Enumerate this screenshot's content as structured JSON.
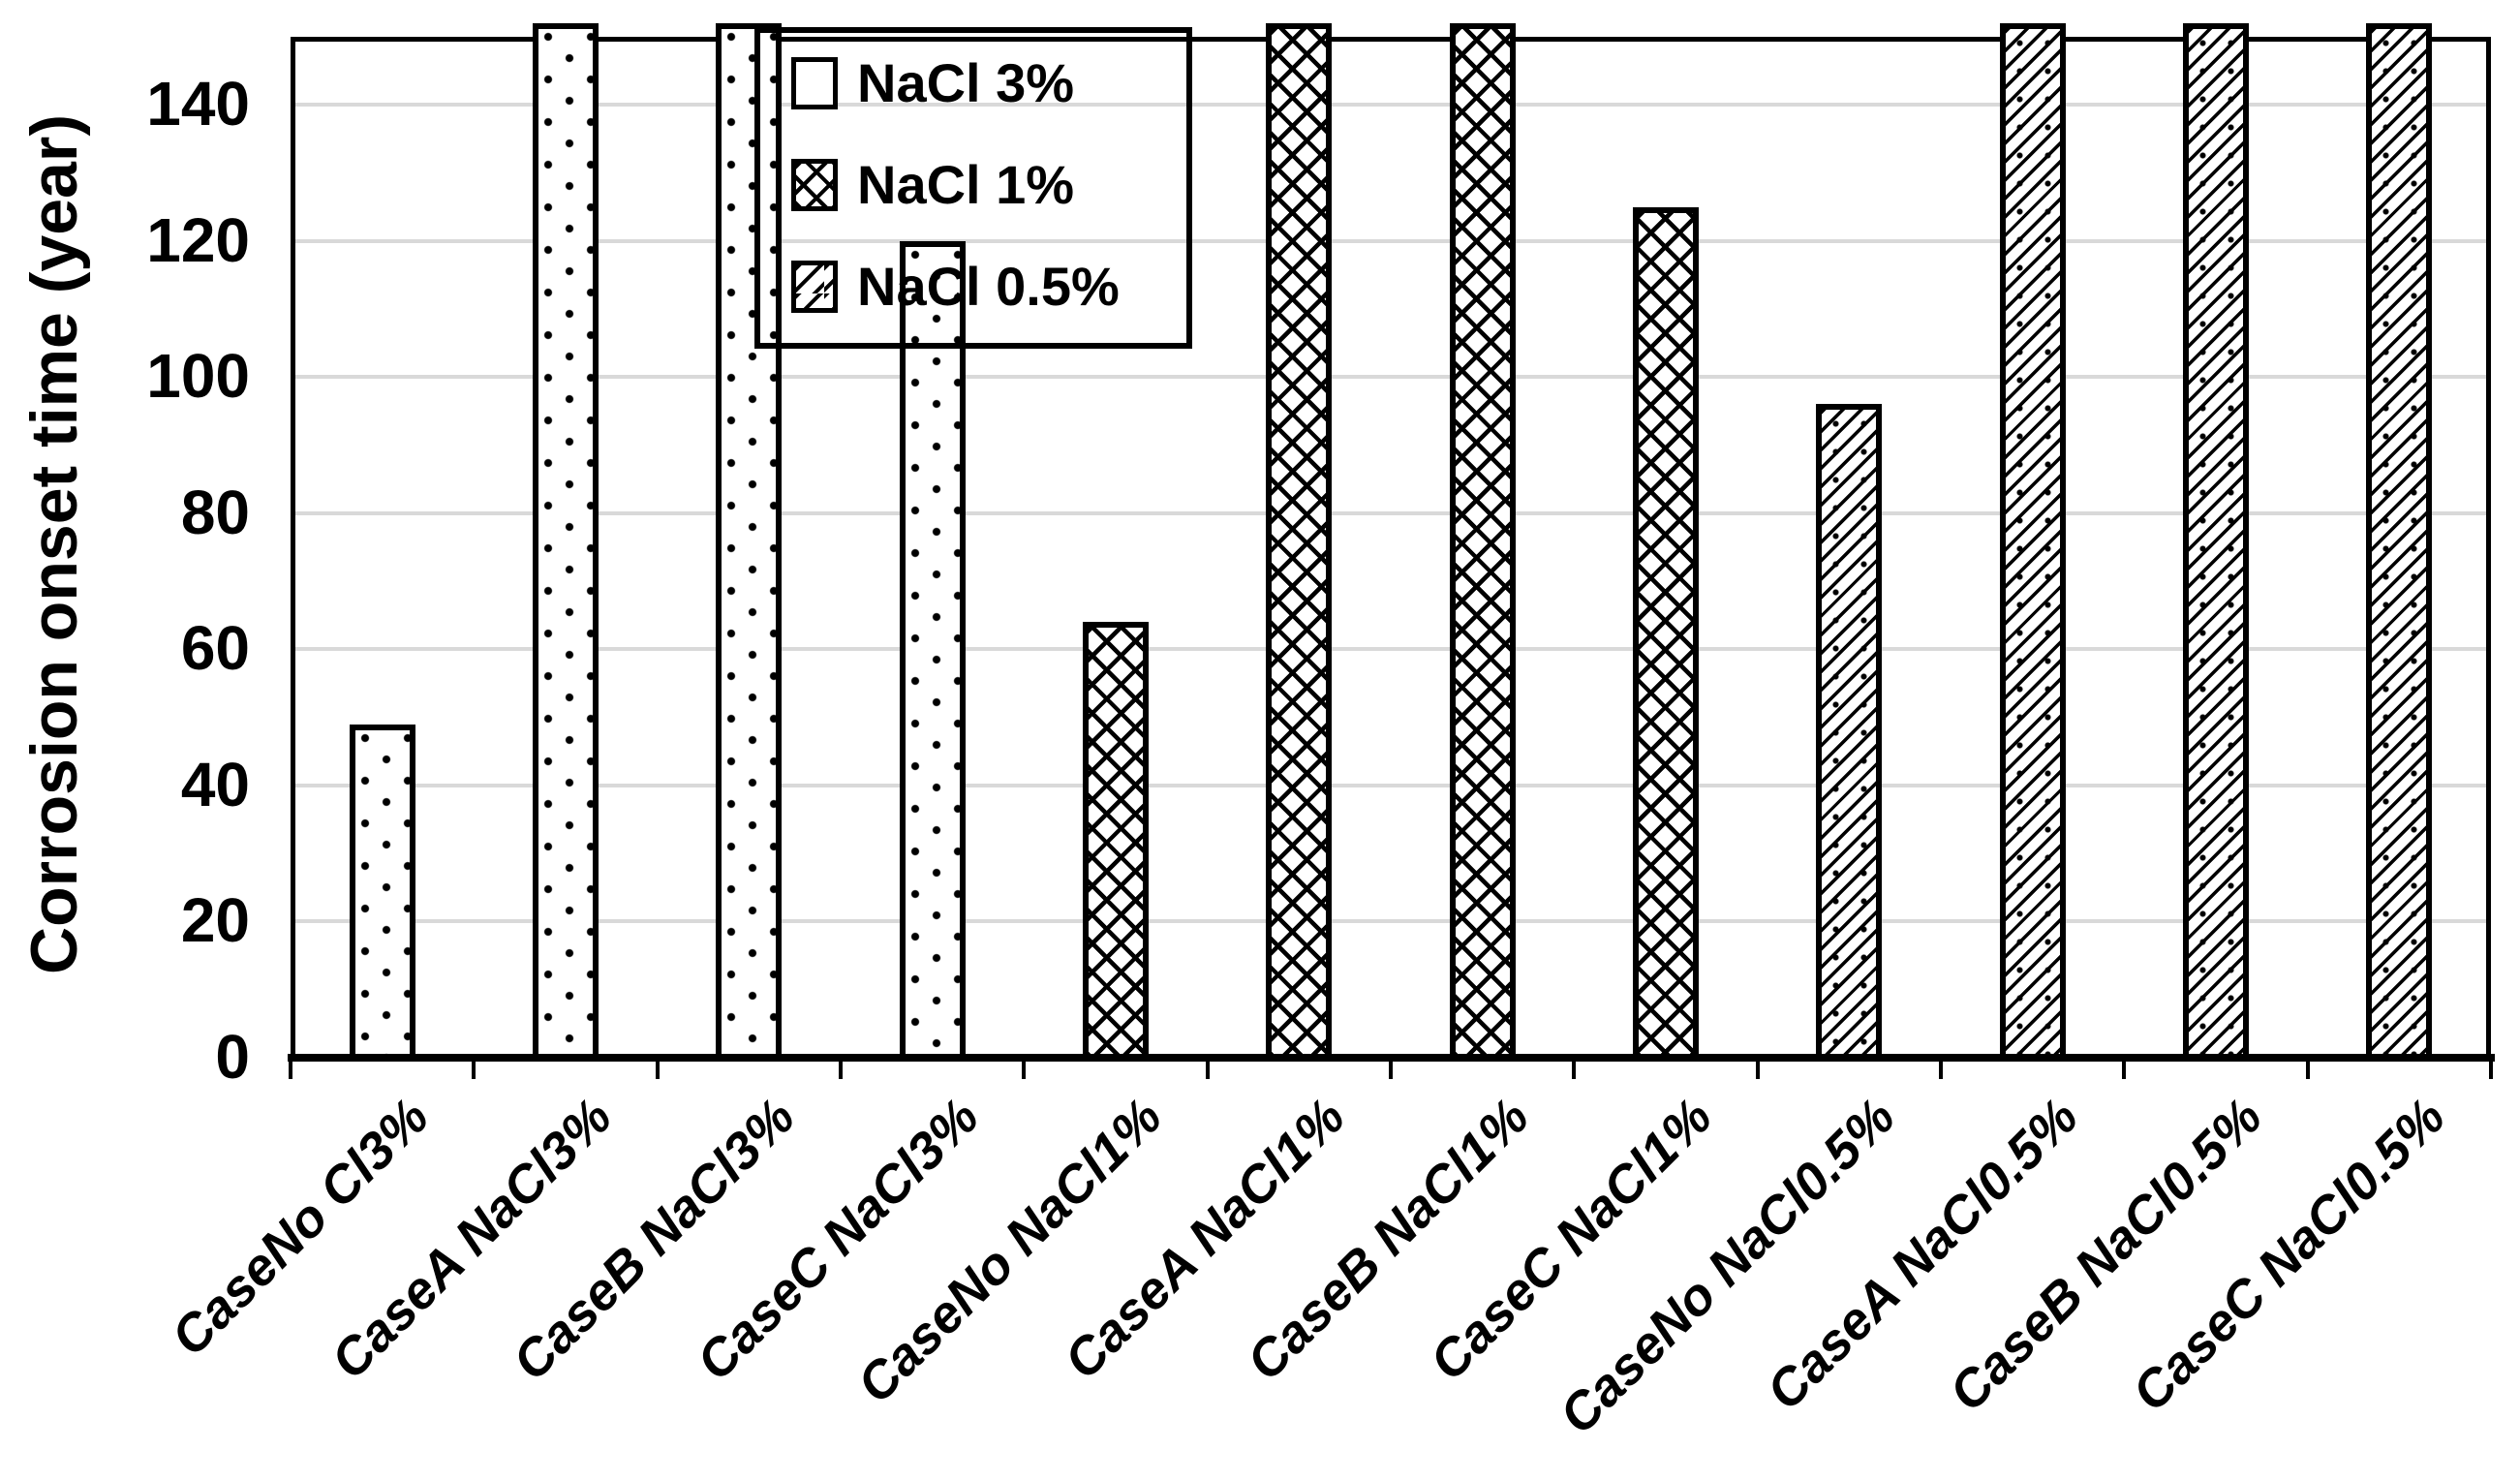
{
  "chart_data": {
    "type": "bar",
    "title": "",
    "ylabel": "Corrosion onset time (year)",
    "xlabel": "",
    "ylim": [
      0,
      150
    ],
    "yticks": [
      0,
      20,
      40,
      60,
      80,
      100,
      120,
      140
    ],
    "grid": true,
    "gridline_color": "#D9D9D9",
    "bar_fill_color": "#FFFFFF",
    "bar_border_color": "#000000",
    "legend_position": "top-inside-left",
    "legend": [
      "NaCl 3%",
      "NaCl 1%",
      "NaCl 0.5%"
    ],
    "series_patterns": {
      "NaCl 3%": "dots",
      "NaCl 1%": "crosshatch",
      "NaCl 0.5%": "diagonal"
    },
    "categories": [
      "CaseNo Cl3%",
      "CaseA NaCl3%",
      "CaseB NaCl3%",
      "CaseC NaCl3%",
      "CaseNo NaCl1%",
      "CaseA NaCl1%",
      "CaseB NaCl1%",
      "CaseC NaCl1%",
      "CaseNo NaCl0.5%",
      "CaseA NaCl0.5%",
      "CaseB NaCl0.5%",
      "CaseC NaCl0.5%"
    ],
    "bars": [
      {
        "category": "CaseNo Cl3%",
        "series": "NaCl 3%",
        "value": 49,
        "exceeds_axis": false
      },
      {
        "category": "CaseA NaCl3%",
        "series": "NaCl 3%",
        "value": 150,
        "exceeds_axis": true
      },
      {
        "category": "CaseB NaCl3%",
        "series": "NaCl 3%",
        "value": 150,
        "exceeds_axis": true
      },
      {
        "category": "CaseC NaCl3%",
        "series": "NaCl 3%",
        "value": 120,
        "exceeds_axis": false
      },
      {
        "category": "CaseNo NaCl1%",
        "series": "NaCl 1%",
        "value": 64,
        "exceeds_axis": false
      },
      {
        "category": "CaseA NaCl1%",
        "series": "NaCl 1%",
        "value": 150,
        "exceeds_axis": true
      },
      {
        "category": "CaseB NaCl1%",
        "series": "NaCl 1%",
        "value": 150,
        "exceeds_axis": true
      },
      {
        "category": "CaseC NaCl1%",
        "series": "NaCl 1%",
        "value": 125,
        "exceeds_axis": false
      },
      {
        "category": "CaseNo NaCl0.5%",
        "series": "NaCl 0.5%",
        "value": 96,
        "exceeds_axis": false
      },
      {
        "category": "CaseA NaCl0.5%",
        "series": "NaCl 0.5%",
        "value": 150,
        "exceeds_axis": true
      },
      {
        "category": "CaseB NaCl0.5%",
        "series": "NaCl 0.5%",
        "value": 150,
        "exceeds_axis": true
      },
      {
        "category": "CaseC NaCl0.5%",
        "series": "NaCl 0.5%",
        "value": 150,
        "exceeds_axis": true
      }
    ]
  }
}
